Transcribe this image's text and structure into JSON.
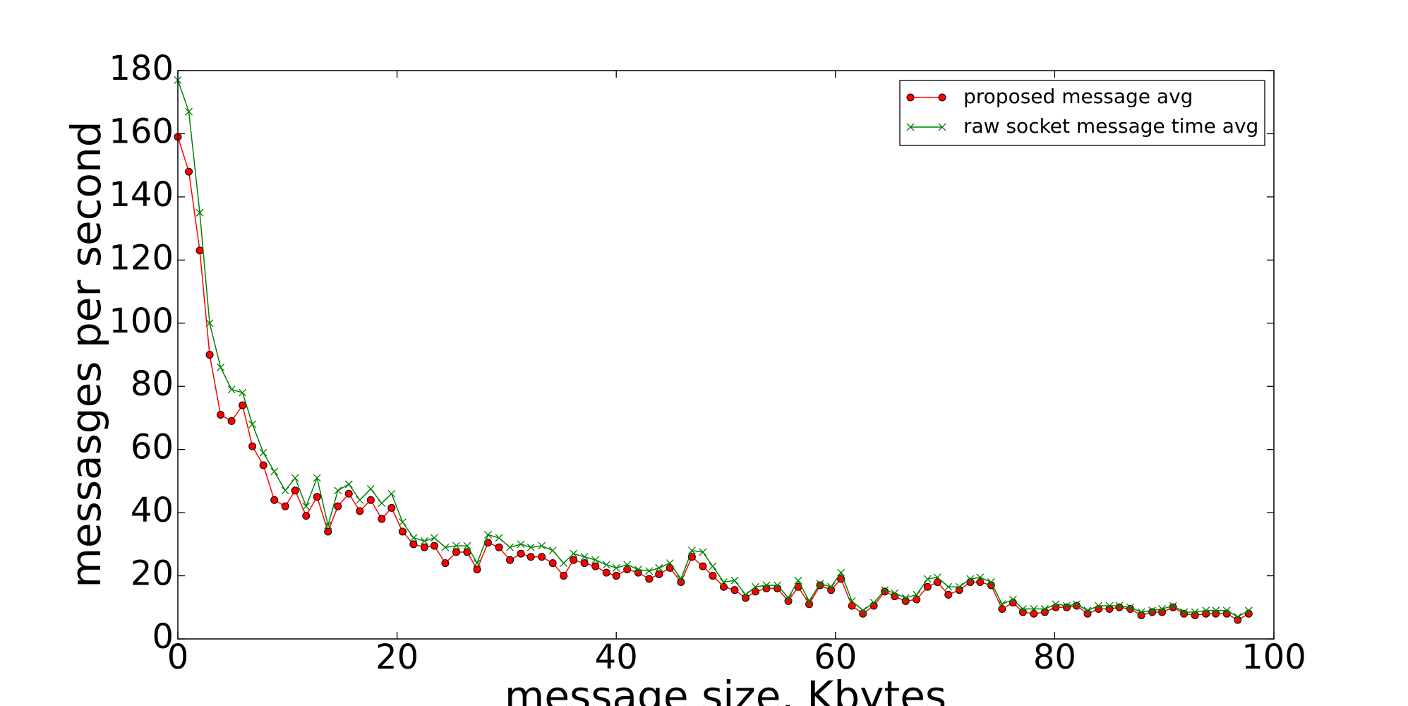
{
  "chart_data": {
    "type": "line",
    "xlabel": "message size, Kbytes",
    "ylabel": "messasges per second",
    "x": [
      0,
      1.0,
      2.0,
      2.9,
      3.9,
      4.9,
      5.9,
      6.8,
      7.8,
      8.8,
      9.8,
      10.7,
      11.7,
      12.7,
      13.7,
      14.6,
      15.6,
      16.6,
      17.6,
      18.6,
      19.5,
      20.5,
      21.5,
      22.5,
      23.4,
      24.4,
      25.4,
      26.4,
      27.3,
      28.3,
      29.3,
      30.3,
      31.3,
      32.2,
      33.2,
      34.2,
      35.2,
      36.1,
      37.1,
      38.1,
      39.1,
      40.0,
      41.0,
      42.0,
      43.0,
      43.9,
      44.9,
      45.9,
      46.9,
      47.9,
      48.8,
      49.8,
      50.8,
      51.8,
      52.7,
      53.7,
      54.7,
      55.7,
      56.6,
      57.6,
      58.6,
      59.6,
      60.5,
      61.5,
      62.5,
      63.5,
      64.5,
      65.4,
      66.4,
      67.4,
      68.4,
      69.3,
      70.3,
      71.3,
      72.3,
      73.2,
      74.2,
      75.2,
      76.2,
      77.1,
      78.1,
      79.1,
      80.1,
      81.1,
      82.0,
      83.0,
      84.0,
      85.0,
      85.9,
      86.9,
      87.9,
      88.9,
      89.8,
      90.8,
      91.8,
      92.8,
      93.8,
      94.7,
      95.7,
      96.7,
      97.7
    ],
    "series": [
      {
        "name": "proposed message avg",
        "color": "#ff0000",
        "marker": "circle",
        "values": [
          159,
          148,
          123,
          90,
          71,
          69,
          74,
          61,
          55,
          44,
          42,
          47,
          39,
          45,
          34,
          42,
          46,
          40.5,
          44,
          38,
          41.5,
          34,
          30,
          29,
          29.5,
          24,
          27.5,
          27.5,
          22,
          30.5,
          29,
          25,
          27,
          26,
          26,
          24,
          20,
          25,
          24,
          23,
          21,
          20,
          22,
          21,
          19,
          20.5,
          22.5,
          18,
          26,
          23,
          20,
          16.5,
          15.5,
          13,
          15,
          16,
          16,
          12,
          16.5,
          11,
          17,
          15.5,
          19,
          10.5,
          8,
          10.5,
          15,
          13.5,
          12,
          12.5,
          16.5,
          18,
          14,
          15.5,
          18,
          18,
          17,
          9.5,
          11.5,
          8.5,
          8,
          8.5,
          10,
          10,
          10.5,
          8,
          9.5,
          9.5,
          10,
          9.5,
          7.5,
          8.5,
          8.5,
          10,
          8,
          7.5,
          8,
          8,
          8,
          6,
          8
        ]
      },
      {
        "name": "raw socket message time avg",
        "color": "#008000",
        "marker": "x",
        "values": [
          177,
          167,
          135,
          100,
          86,
          79,
          78,
          68,
          59,
          53,
          47,
          51,
          42,
          51,
          36,
          47,
          49,
          44,
          47.5,
          43,
          46,
          37,
          32,
          31,
          32,
          29,
          29.5,
          29.5,
          24,
          33,
          32,
          29,
          30,
          29,
          29.5,
          28,
          24,
          27,
          26,
          25,
          23.5,
          22.5,
          23.5,
          22,
          21.5,
          22.5,
          24,
          19,
          28,
          27.5,
          23,
          18,
          18.5,
          14,
          16.5,
          17,
          17,
          13,
          18.5,
          12,
          17.5,
          16.5,
          21,
          12,
          9,
          11.5,
          15.5,
          14.5,
          13,
          14,
          19,
          19.5,
          16.5,
          16.5,
          19,
          19.5,
          18,
          11,
          12.5,
          9.5,
          9.5,
          9.5,
          11,
          10.5,
          11,
          9,
          10.5,
          10.5,
          10.5,
          10,
          8.5,
          9,
          9.5,
          10.5,
          8.5,
          8.5,
          9,
          9,
          9,
          7,
          9
        ]
      }
    ],
    "xlim": [
      0,
      100
    ],
    "xticks": [
      0,
      20,
      40,
      60,
      80,
      100
    ],
    "ylim": [
      0,
      180
    ],
    "yticks": [
      0,
      20,
      40,
      60,
      80,
      100,
      120,
      140,
      160,
      180
    ],
    "grid": false,
    "legend": "upper right"
  }
}
